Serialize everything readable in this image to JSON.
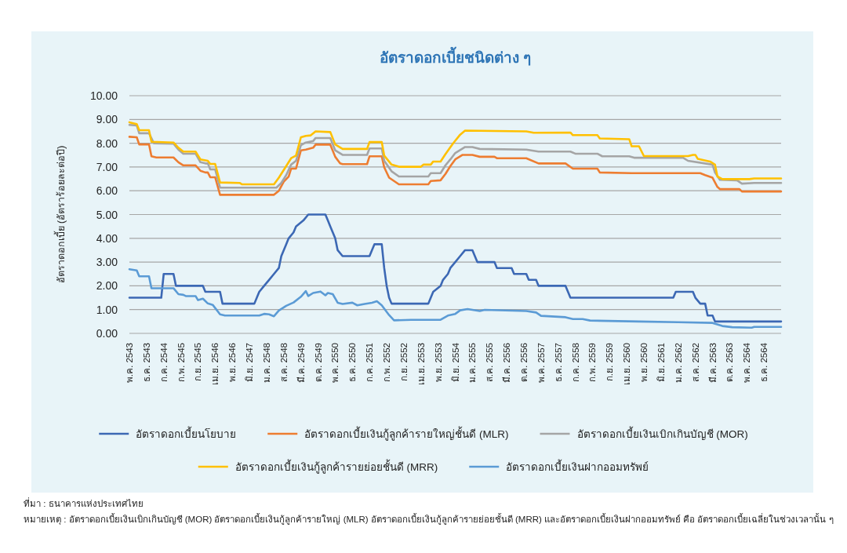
{
  "chart_data": {
    "type": "line",
    "title": "อัตราดอกเบี้ยชนิดต่าง ๆ",
    "ylabel": "อัตราดอกเบี้ย (อัตราร้อยละต่อปี)",
    "xlim": [
      "2543-05",
      "2565-07"
    ],
    "xticks": [
      {
        "value": "2543-05",
        "label": "พ.ค. 2543"
      },
      {
        "value": "2543-12",
        "label": "ธ.ค. 2543"
      },
      {
        "value": "2544-07",
        "label": "ก.ค. 2544"
      },
      {
        "value": "2545-02",
        "label": "ก.พ. 2545"
      },
      {
        "value": "2545-09",
        "label": "ก.ย. 2545"
      },
      {
        "value": "2546-04",
        "label": "เม.ย. 2546"
      },
      {
        "value": "2546-11",
        "label": "พ.ย. 2546"
      },
      {
        "value": "2547-06",
        "label": "มิ.ย. 2547"
      },
      {
        "value": "2548-01",
        "label": "ม.ค. 2548"
      },
      {
        "value": "2548-08",
        "label": "ส.ค. 2548"
      },
      {
        "value": "2549-03",
        "label": "มี.ค. 2549"
      },
      {
        "value": "2549-10",
        "label": "ต.ค. 2549"
      },
      {
        "value": "2550-05",
        "label": "พ.ค. 2550"
      },
      {
        "value": "2550-12",
        "label": "ธ.ค. 2550"
      },
      {
        "value": "2551-07",
        "label": "ก.ค. 2551"
      },
      {
        "value": "2552-02",
        "label": "ก.พ. 2552"
      },
      {
        "value": "2552-09",
        "label": "ก.ย. 2552"
      },
      {
        "value": "2553-04",
        "label": "เม.ย. 2553"
      },
      {
        "value": "2553-11",
        "label": "พ.ย. 2553"
      },
      {
        "value": "2554-06",
        "label": "มิ.ย. 2554"
      },
      {
        "value": "2555-01",
        "label": "ม.ค. 2555"
      },
      {
        "value": "2555-08",
        "label": "ส.ค. 2555"
      },
      {
        "value": "2556-03",
        "label": "มี.ค. 2556"
      },
      {
        "value": "2556-10",
        "label": "ต.ค. 2556"
      },
      {
        "value": "2557-05",
        "label": "พ.ค. 2557"
      },
      {
        "value": "2557-12",
        "label": "ธ.ค. 2557"
      },
      {
        "value": "2558-07",
        "label": "ก.ค. 2558"
      },
      {
        "value": "2559-02",
        "label": "ก.พ. 2559"
      },
      {
        "value": "2559-09",
        "label": "ก.ย. 2559"
      },
      {
        "value": "2560-04",
        "label": "เม.ย. 2560"
      },
      {
        "value": "2560-11",
        "label": "พ.ย. 2560"
      },
      {
        "value": "2561-06",
        "label": "มิ.ย. 2561"
      },
      {
        "value": "2562-01",
        "label": "ม.ค. 2562"
      },
      {
        "value": "2562-08",
        "label": "ส.ค. 2562"
      },
      {
        "value": "2563-03",
        "label": "มี.ค. 2563"
      },
      {
        "value": "2563-10",
        "label": "ต.ค. 2563"
      },
      {
        "value": "2564-05",
        "label": "พ.ค. 2564"
      },
      {
        "value": "2564-12",
        "label": "ธ.ค. 2564"
      }
    ],
    "ylim": [
      0,
      10
    ],
    "yticks": [
      {
        "value": 0,
        "label": "0.00"
      },
      {
        "value": 1,
        "label": "1.00"
      },
      {
        "value": 2,
        "label": "2.00"
      },
      {
        "value": 3,
        "label": "3.00"
      },
      {
        "value": 4,
        "label": "4.00"
      },
      {
        "value": 5,
        "label": "5.00"
      },
      {
        "value": 6,
        "label": "6.00"
      },
      {
        "value": 7,
        "label": "7.00"
      },
      {
        "value": 8,
        "label": "8.00"
      },
      {
        "value": 9,
        "label": "9.00"
      },
      {
        "value": 10,
        "label": "10.00"
      }
    ],
    "grid": "y",
    "legend": "bottom",
    "marker": "none",
    "series": [
      {
        "name": "อัตราดอกเบี้ยนโยบาย",
        "color": "#3c68b4",
        "x": [
          "2543-05",
          "2544-06",
          "2544-07",
          "2544-11",
          "2544-12",
          "2545-11",
          "2545-12",
          "2546-06",
          "2546-07",
          "2547-08",
          "2547-09",
          "2547-10",
          "2547-12",
          "2548-02",
          "2548-04",
          "2548-06",
          "2548-07",
          "2548-09",
          "2548-10",
          "2548-12",
          "2549-01",
          "2549-04",
          "2549-06",
          "2550-01",
          "2550-02",
          "2550-03",
          "2550-05",
          "2550-06",
          "2550-08",
          "2551-07",
          "2551-08",
          "2551-09",
          "2551-12",
          "2552-01",
          "2552-02",
          "2552-03",
          "2552-04",
          "2553-07",
          "2553-08",
          "2553-09",
          "2553-12",
          "2554-01",
          "2554-03",
          "2554-04",
          "2554-06",
          "2554-08",
          "2554-10",
          "2555-01",
          "2555-02",
          "2555-03",
          "2555-10",
          "2555-11",
          "2556-05",
          "2556-06",
          "2556-11",
          "2556-12",
          "2557-03",
          "2557-04",
          "2558-03",
          "2558-04",
          "2558-05",
          "2561-11",
          "2561-12",
          "2562-07",
          "2562-08",
          "2562-10",
          "2562-12",
          "2563-01",
          "2563-03",
          "2563-04",
          "2565-07"
        ],
        "values": [
          1.5,
          1.5,
          2.5,
          2.5,
          2.0,
          2.0,
          1.75,
          1.75,
          1.25,
          1.25,
          1.5,
          1.75,
          2.0,
          2.25,
          2.5,
          2.75,
          3.25,
          3.75,
          4.0,
          4.25,
          4.5,
          4.75,
          5.0,
          5.0,
          4.75,
          4.5,
          4.0,
          3.5,
          3.25,
          3.25,
          3.5,
          3.75,
          3.75,
          2.75,
          2.0,
          1.5,
          1.25,
          1.25,
          1.5,
          1.75,
          2.0,
          2.25,
          2.5,
          2.75,
          3.0,
          3.25,
          3.5,
          3.5,
          3.25,
          3.0,
          3.0,
          2.75,
          2.75,
          2.5,
          2.5,
          2.25,
          2.25,
          2.0,
          2.0,
          1.75,
          1.5,
          1.5,
          1.75,
          1.75,
          1.5,
          1.25,
          1.25,
          0.75,
          0.75,
          0.5,
          0.5
        ]
      },
      {
        "name": "อัตราดอกเบี้ยเงินกู้ลูกค้ารายใหญ่ชั้นดี (MLR)",
        "color": "#ed7d31",
        "x": [
          "2543-05",
          "2543-08",
          "2543-09",
          "2544-01",
          "2544-02",
          "2544-04",
          "2544-11",
          "2545-01",
          "2545-03",
          "2545-08",
          "2545-10",
          "2545-12",
          "2546-01",
          "2546-02",
          "2546-04",
          "2546-06",
          "2548-04",
          "2548-06",
          "2548-08",
          "2548-10",
          "2548-11",
          "2549-01",
          "2549-03",
          "2549-05",
          "2549-08",
          "2549-09",
          "2550-03",
          "2550-05",
          "2550-07",
          "2550-08",
          "2551-06",
          "2551-07",
          "2551-12",
          "2552-01",
          "2552-03",
          "2552-07",
          "2553-07",
          "2553-08",
          "2553-12",
          "2554-02",
          "2554-04",
          "2554-06",
          "2554-09",
          "2555-01",
          "2555-04",
          "2555-10",
          "2555-11",
          "2556-11",
          "2557-04",
          "2558-03",
          "2558-06",
          "2559-04",
          "2559-05",
          "2560-06",
          "2562-10",
          "2562-12",
          "2563-03",
          "2563-05",
          "2563-06",
          "2564-02",
          "2564-03",
          "2565-07"
        ],
        "values": [
          8.27,
          8.25,
          7.95,
          7.95,
          7.45,
          7.4,
          7.4,
          7.2,
          7.07,
          7.07,
          6.84,
          6.77,
          6.77,
          6.57,
          6.57,
          5.83,
          5.83,
          6.0,
          6.38,
          6.6,
          6.93,
          6.93,
          7.7,
          7.73,
          7.81,
          7.94,
          7.94,
          7.43,
          7.15,
          7.12,
          7.12,
          7.45,
          7.45,
          6.99,
          6.55,
          6.27,
          6.27,
          6.41,
          6.44,
          6.71,
          7.04,
          7.32,
          7.51,
          7.51,
          7.43,
          7.43,
          7.37,
          7.37,
          7.15,
          7.15,
          6.93,
          6.93,
          6.77,
          6.74,
          6.74,
          6.66,
          6.55,
          6.16,
          6.07,
          6.07,
          5.97,
          5.97
        ]
      },
      {
        "name": "อัตราดอกเบี้ยเงินเบิกเกินบัญชี (MOR)",
        "color": "#a5a5a5",
        "x": [
          "2543-05",
          "2543-08",
          "2543-09",
          "2544-01",
          "2544-03",
          "2544-11",
          "2545-01",
          "2545-03",
          "2545-08",
          "2545-10",
          "2545-12",
          "2546-01",
          "2546-02",
          "2546-04",
          "2546-06",
          "2548-05",
          "2548-07",
          "2548-09",
          "2548-11",
          "2549-01",
          "2549-03",
          "2549-05",
          "2549-08",
          "2549-09",
          "2550-03",
          "2550-05",
          "2550-08",
          "2551-06",
          "2551-07",
          "2551-12",
          "2552-01",
          "2552-04",
          "2552-07",
          "2553-07",
          "2553-08",
          "2553-12",
          "2554-02",
          "2554-04",
          "2554-06",
          "2554-10",
          "2555-01",
          "2555-04",
          "2556-11",
          "2557-04",
          "2558-05",
          "2558-07",
          "2559-04",
          "2559-06",
          "2560-05",
          "2560-07",
          "2562-03",
          "2562-05",
          "2563-03",
          "2563-04",
          "2563-06",
          "2564-01",
          "2564-03",
          "2564-08",
          "2565-07"
        ],
        "values": [
          8.77,
          8.75,
          8.42,
          8.42,
          8.0,
          7.98,
          7.73,
          7.56,
          7.56,
          7.2,
          7.15,
          7.15,
          6.9,
          6.9,
          6.13,
          6.13,
          6.33,
          6.66,
          7.1,
          7.26,
          7.92,
          8.03,
          8.09,
          8.22,
          8.22,
          7.7,
          7.51,
          7.51,
          7.78,
          7.78,
          7.26,
          6.82,
          6.6,
          6.6,
          6.74,
          6.74,
          7.07,
          7.32,
          7.59,
          7.84,
          7.84,
          7.76,
          7.73,
          7.65,
          7.65,
          7.56,
          7.56,
          7.45,
          7.45,
          7.39,
          7.39,
          7.26,
          7.1,
          6.77,
          6.46,
          6.44,
          6.3,
          6.33,
          6.33
        ]
      },
      {
        "name": "อัตราดอกเบี้ยเงินกู้ลูกค้ารายย่อยชั้นดี (MRR)",
        "color": "#ffc000",
        "x": [
          "2543-05",
          "2543-08",
          "2543-09",
          "2544-01",
          "2544-02",
          "2544-11",
          "2545-01",
          "2545-03",
          "2545-08",
          "2545-10",
          "2546-01",
          "2546-02",
          "2546-04",
          "2546-06",
          "2547-02",
          "2547-03",
          "2548-04",
          "2548-06",
          "2548-09",
          "2548-11",
          "2549-01",
          "2549-03",
          "2549-05",
          "2549-07",
          "2549-09",
          "2550-03",
          "2550-05",
          "2550-08",
          "2551-06",
          "2551-07",
          "2551-12",
          "2552-01",
          "2552-04",
          "2552-07",
          "2553-04",
          "2553-05",
          "2553-08",
          "2553-09",
          "2553-12",
          "2554-02",
          "2554-05",
          "2554-08",
          "2554-10",
          "2556-11",
          "2557-02",
          "2558-05",
          "2558-06",
          "2559-04",
          "2559-05",
          "2560-05",
          "2560-06",
          "2560-09",
          "2560-11",
          "2562-05",
          "2562-07",
          "2562-08",
          "2562-09",
          "2563-02",
          "2563-04",
          "2563-05",
          "2563-07",
          "2564-06",
          "2564-08",
          "2565-07"
        ],
        "values": [
          8.88,
          8.8,
          8.55,
          8.55,
          8.06,
          8.03,
          7.81,
          7.65,
          7.65,
          7.32,
          7.26,
          7.13,
          7.13,
          6.35,
          6.33,
          6.27,
          6.27,
          6.55,
          7.04,
          7.37,
          7.48,
          8.25,
          8.31,
          8.33,
          8.5,
          8.47,
          7.95,
          7.76,
          7.76,
          8.05,
          8.05,
          7.48,
          7.1,
          7.01,
          7.01,
          7.1,
          7.1,
          7.23,
          7.23,
          7.54,
          7.98,
          8.36,
          8.53,
          8.5,
          8.44,
          8.45,
          8.34,
          8.34,
          8.2,
          8.17,
          7.87,
          7.87,
          7.46,
          7.46,
          7.51,
          7.51,
          7.34,
          7.23,
          7.1,
          6.6,
          6.49,
          6.49,
          6.52,
          6.52
        ]
      },
      {
        "name": "อัตราดอกเบี้ยเงินฝากออมทรัพย์",
        "color": "#5b9bd5",
        "x": [
          "2543-05",
          "2543-08",
          "2543-09",
          "2544-01",
          "2544-02",
          "2544-11",
          "2545-01",
          "2545-03",
          "2545-04",
          "2545-08",
          "2545-09",
          "2545-11",
          "2546-01",
          "2546-03",
          "2546-06",
          "2546-08",
          "2547-10",
          "2547-12",
          "2548-02",
          "2548-04",
          "2548-06",
          "2548-09",
          "2548-12",
          "2549-03",
          "2549-05",
          "2549-06",
          "2549-08",
          "2549-11",
          "2550-01",
          "2550-02",
          "2550-04",
          "2550-06",
          "2550-08",
          "2550-12",
          "2551-02",
          "2551-05",
          "2551-08",
          "2551-10",
          "2551-12",
          "2552-03",
          "2552-05",
          "2552-12",
          "2553-12",
          "2554-03",
          "2554-06",
          "2554-08",
          "2554-11",
          "2555-04",
          "2555-06",
          "2556-11",
          "2557-03",
          "2557-05",
          "2558-03",
          "2558-06",
          "2558-10",
          "2559-01",
          "2560-09",
          "2562-01",
          "2563-03",
          "2563-07",
          "2563-11",
          "2564-07",
          "2564-08",
          "2565-07"
        ],
        "values": [
          2.7,
          2.65,
          2.4,
          2.4,
          1.9,
          1.9,
          1.65,
          1.62,
          1.57,
          1.57,
          1.4,
          1.46,
          1.26,
          1.2,
          0.8,
          0.75,
          0.75,
          0.82,
          0.8,
          0.72,
          0.96,
          1.16,
          1.3,
          1.54,
          1.78,
          1.57,
          1.7,
          1.76,
          1.6,
          1.7,
          1.65,
          1.29,
          1.24,
          1.29,
          1.18,
          1.24,
          1.29,
          1.35,
          1.18,
          0.77,
          0.55,
          0.57,
          0.57,
          0.75,
          0.82,
          0.97,
          1.02,
          0.94,
          0.99,
          0.94,
          0.88,
          0.74,
          0.68,
          0.6,
          0.6,
          0.54,
          0.5,
          0.47,
          0.44,
          0.31,
          0.26,
          0.24,
          0.27,
          0.27
        ]
      }
    ],
    "annotations": [
      "ที่มา : ธนาคารแห่งประเทศไทย",
      "หมายเหตุ : อัตราดอกเบี้ยเงินเบิกเกินบัญชี (MOR) อัตราดอกเบี้ยเงินกู้ลูกค้ารายใหญ่ (MLR) อัตราดอกเบี้ยเงินกู้ลูกค้ารายย่อยชั้นดี (MRR) และอัตราดอกเบี้ยเงินฝากออมทรัพย์ คือ อัตราดอกเบี้ยเฉลี่ยในช่วงเวลานั้น ๆ"
    ]
  }
}
